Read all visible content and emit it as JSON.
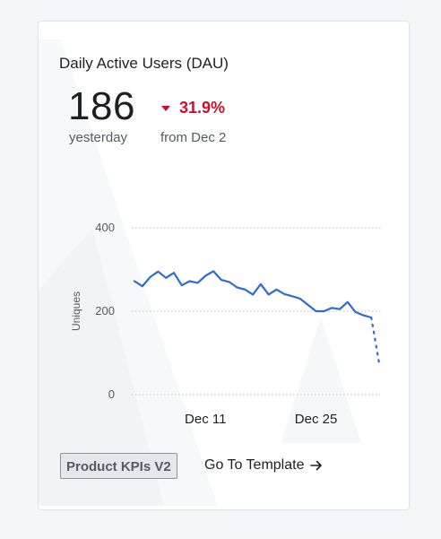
{
  "card": {
    "title": "Daily Active Users (DAU)",
    "value": "186",
    "value_caption": "yesterday",
    "delta": "31.9%",
    "delta_direction": "down",
    "delta_caption": "from Dec 2",
    "delta_color": "#c8102e",
    "pill_label": "Product KPIs V2",
    "link_label": "Go To Template",
    "link_icon": "arrow-right-icon"
  },
  "chart_data": {
    "type": "line",
    "title": "",
    "xlabel": "",
    "ylabel": "Uniques",
    "ylim": [
      0,
      400
    ],
    "yticks": [
      "0",
      "200",
      "400"
    ],
    "xticks": [
      {
        "label": "Dec 11",
        "x": 9
      },
      {
        "label": "Dec 25",
        "x": 23
      }
    ],
    "grid": true,
    "line_color": "#2f6bd1",
    "series": [
      {
        "x": [
          0,
          1,
          2,
          3,
          4,
          5,
          6,
          7,
          8,
          9,
          10,
          11,
          12,
          13,
          14,
          15,
          16,
          17,
          18,
          19,
          20,
          21,
          22,
          23,
          24,
          25,
          26,
          27,
          28,
          29,
          30
        ],
        "values": [
          272,
          260,
          282,
          295,
          280,
          292,
          262,
          272,
          268,
          285,
          296,
          275,
          270,
          257,
          252,
          240,
          265,
          240,
          252,
          241,
          236,
          230,
          215,
          200,
          200,
          208,
          205,
          222,
          198,
          190,
          185
        ],
        "partial": {
          "x": [
            30,
            31
          ],
          "values": [
            185,
            75
          ]
        }
      }
    ]
  }
}
